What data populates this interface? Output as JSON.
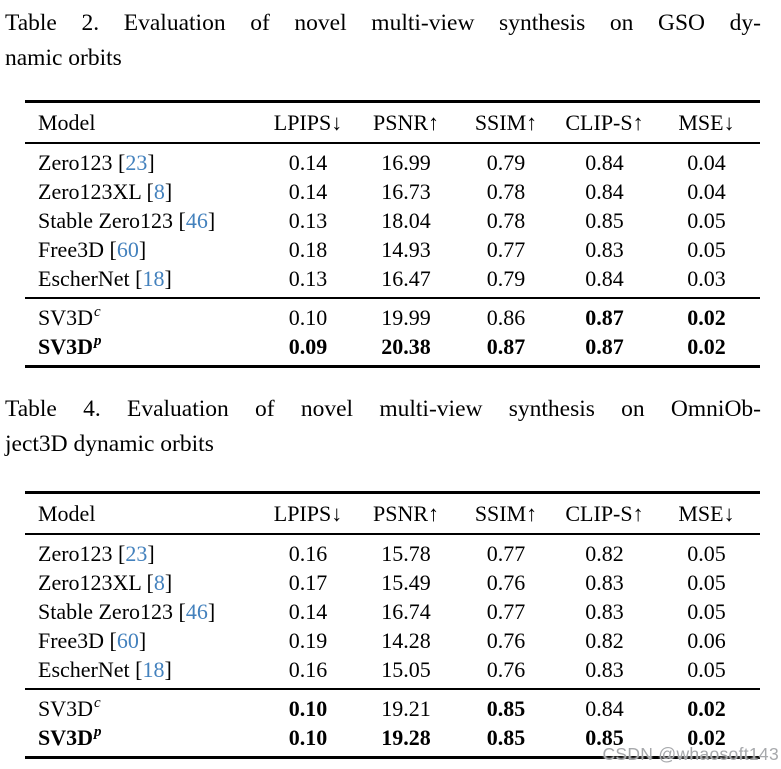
{
  "page": {
    "background": "#ffffff",
    "text_color": "#000000",
    "citation_color": "#4381bd",
    "watermark": "CSDN @whaosoft143"
  },
  "tables": [
    {
      "caption_line1": "Table 2. Evaluation of novel multi-view synthesis on GSO dy-",
      "caption_line2": "namic orbits",
      "headers": [
        "Model",
        "LPIPS↓",
        "PSNR↑",
        "SSIM↑",
        "CLIP-S↑",
        "MSE↓"
      ],
      "baseline_rows": [
        {
          "model": "Zero123",
          "cite": "23",
          "values": [
            "0.14",
            "16.99",
            "0.79",
            "0.84",
            "0.04"
          ],
          "bold": [
            false,
            false,
            false,
            false,
            false
          ],
          "bold_model": false
        },
        {
          "model": "Zero123XL",
          "cite": "8",
          "values": [
            "0.14",
            "16.73",
            "0.78",
            "0.84",
            "0.04"
          ],
          "bold": [
            false,
            false,
            false,
            false,
            false
          ],
          "bold_model": false
        },
        {
          "model": "Stable Zero123",
          "cite": "46",
          "values": [
            "0.13",
            "18.04",
            "0.78",
            "0.85",
            "0.05"
          ],
          "bold": [
            false,
            false,
            false,
            false,
            false
          ],
          "bold_model": false
        },
        {
          "model": "Free3D",
          "cite": "60",
          "values": [
            "0.18",
            "14.93",
            "0.77",
            "0.83",
            "0.05"
          ],
          "bold": [
            false,
            false,
            false,
            false,
            false
          ],
          "bold_model": false
        },
        {
          "model": "EscherNet",
          "cite": "18",
          "values": [
            "0.13",
            "16.47",
            "0.79",
            "0.84",
            "0.03"
          ],
          "bold": [
            false,
            false,
            false,
            false,
            false
          ],
          "bold_model": false
        }
      ],
      "ours_rows": [
        {
          "model": "SV3D",
          "sup": "c",
          "values": [
            "0.10",
            "19.99",
            "0.86",
            "0.87",
            "0.02"
          ],
          "bold": [
            false,
            false,
            false,
            true,
            true
          ],
          "bold_model": false
        },
        {
          "model": "SV3D",
          "sup": "p",
          "values": [
            "0.09",
            "20.38",
            "0.87",
            "0.87",
            "0.02"
          ],
          "bold": [
            true,
            true,
            true,
            true,
            true
          ],
          "bold_model": true
        }
      ]
    },
    {
      "caption_line1": "Table 4. Evaluation of novel multi-view synthesis on OmniOb-",
      "caption_line2": "ject3D dynamic orbits",
      "headers": [
        "Model",
        "LPIPS↓",
        "PSNR↑",
        "SSIM↑",
        "CLIP-S↑",
        "MSE↓"
      ],
      "baseline_rows": [
        {
          "model": "Zero123",
          "cite": "23",
          "values": [
            "0.16",
            "15.78",
            "0.77",
            "0.82",
            "0.05"
          ],
          "bold": [
            false,
            false,
            false,
            false,
            false
          ],
          "bold_model": false
        },
        {
          "model": "Zero123XL",
          "cite": "8",
          "values": [
            "0.17",
            "15.49",
            "0.76",
            "0.83",
            "0.05"
          ],
          "bold": [
            false,
            false,
            false,
            false,
            false
          ],
          "bold_model": false
        },
        {
          "model": "Stable Zero123",
          "cite": "46",
          "values": [
            "0.14",
            "16.74",
            "0.77",
            "0.83",
            "0.05"
          ],
          "bold": [
            false,
            false,
            false,
            false,
            false
          ],
          "bold_model": false
        },
        {
          "model": "Free3D",
          "cite": "60",
          "values": [
            "0.19",
            "14.28",
            "0.76",
            "0.82",
            "0.06"
          ],
          "bold": [
            false,
            false,
            false,
            false,
            false
          ],
          "bold_model": false
        },
        {
          "model": "EscherNet",
          "cite": "18",
          "values": [
            "0.16",
            "15.05",
            "0.76",
            "0.83",
            "0.05"
          ],
          "bold": [
            false,
            false,
            false,
            false,
            false
          ],
          "bold_model": false
        }
      ],
      "ours_rows": [
        {
          "model": "SV3D",
          "sup": "c",
          "values": [
            "0.10",
            "19.21",
            "0.85",
            "0.84",
            "0.02"
          ],
          "bold": [
            true,
            false,
            true,
            false,
            true
          ],
          "bold_model": false
        },
        {
          "model": "SV3D",
          "sup": "p",
          "values": [
            "0.10",
            "19.28",
            "0.85",
            "0.85",
            "0.02"
          ],
          "bold": [
            true,
            true,
            true,
            true,
            true
          ],
          "bold_model": true
        }
      ]
    }
  ]
}
